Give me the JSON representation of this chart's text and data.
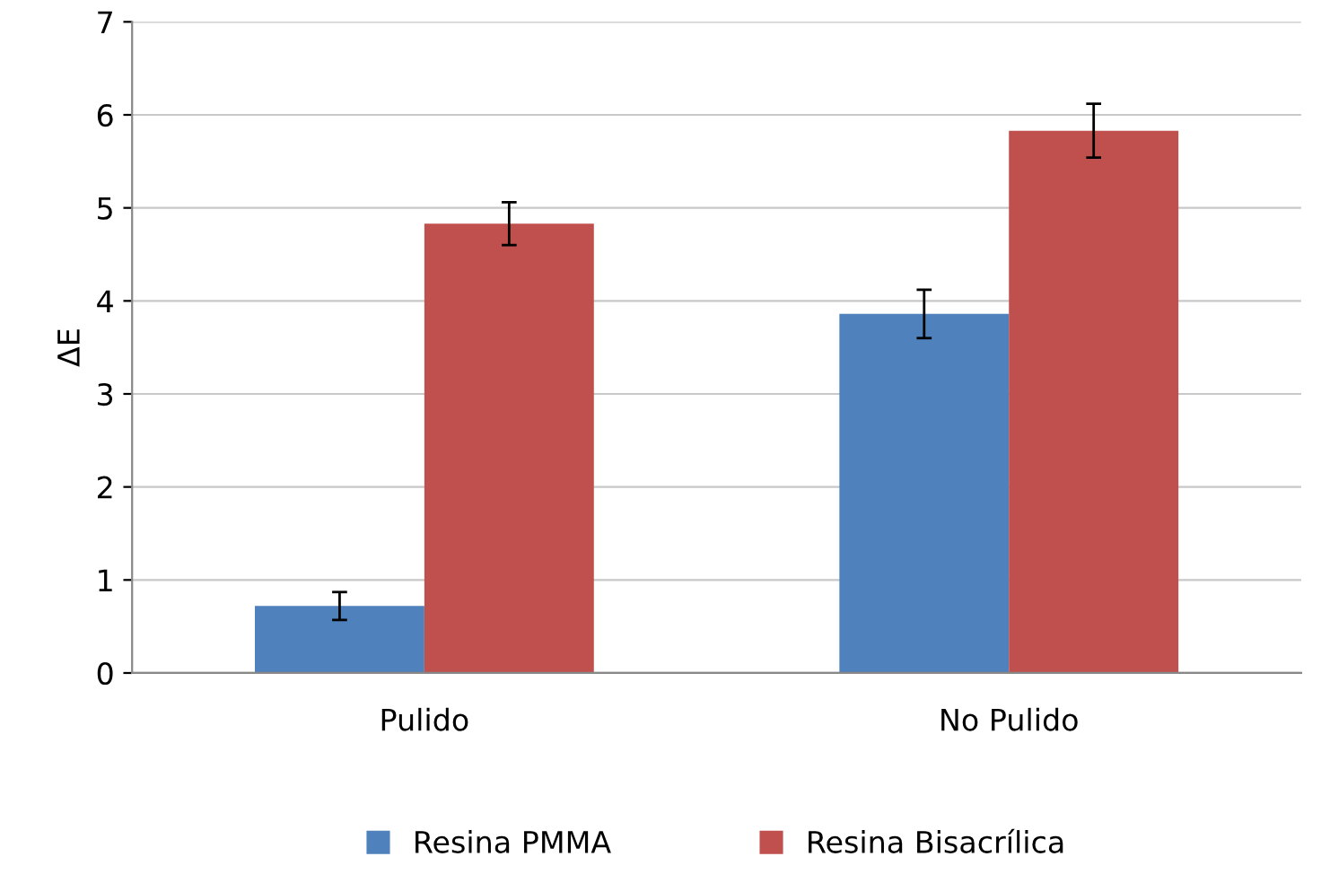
{
  "chart_data": {
    "type": "bar",
    "ylabel": "ΔE",
    "categories": [
      "Pulido",
      "No Pulido"
    ],
    "series": [
      {
        "name": "Resina PMMA",
        "color": "#4f81bd",
        "values": [
          0.72,
          3.86
        ],
        "errors": [
          0.15,
          0.26
        ]
      },
      {
        "name": "Resina Bisacrílica",
        "color": "#c0504d",
        "values": [
          4.83,
          5.83
        ],
        "errors": [
          0.23,
          0.29
        ]
      }
    ],
    "ylim": [
      0,
      7
    ],
    "yticks": [
      0,
      1,
      2,
      3,
      4,
      5,
      6,
      7
    ],
    "grid": "y",
    "legend": "bottom"
  }
}
